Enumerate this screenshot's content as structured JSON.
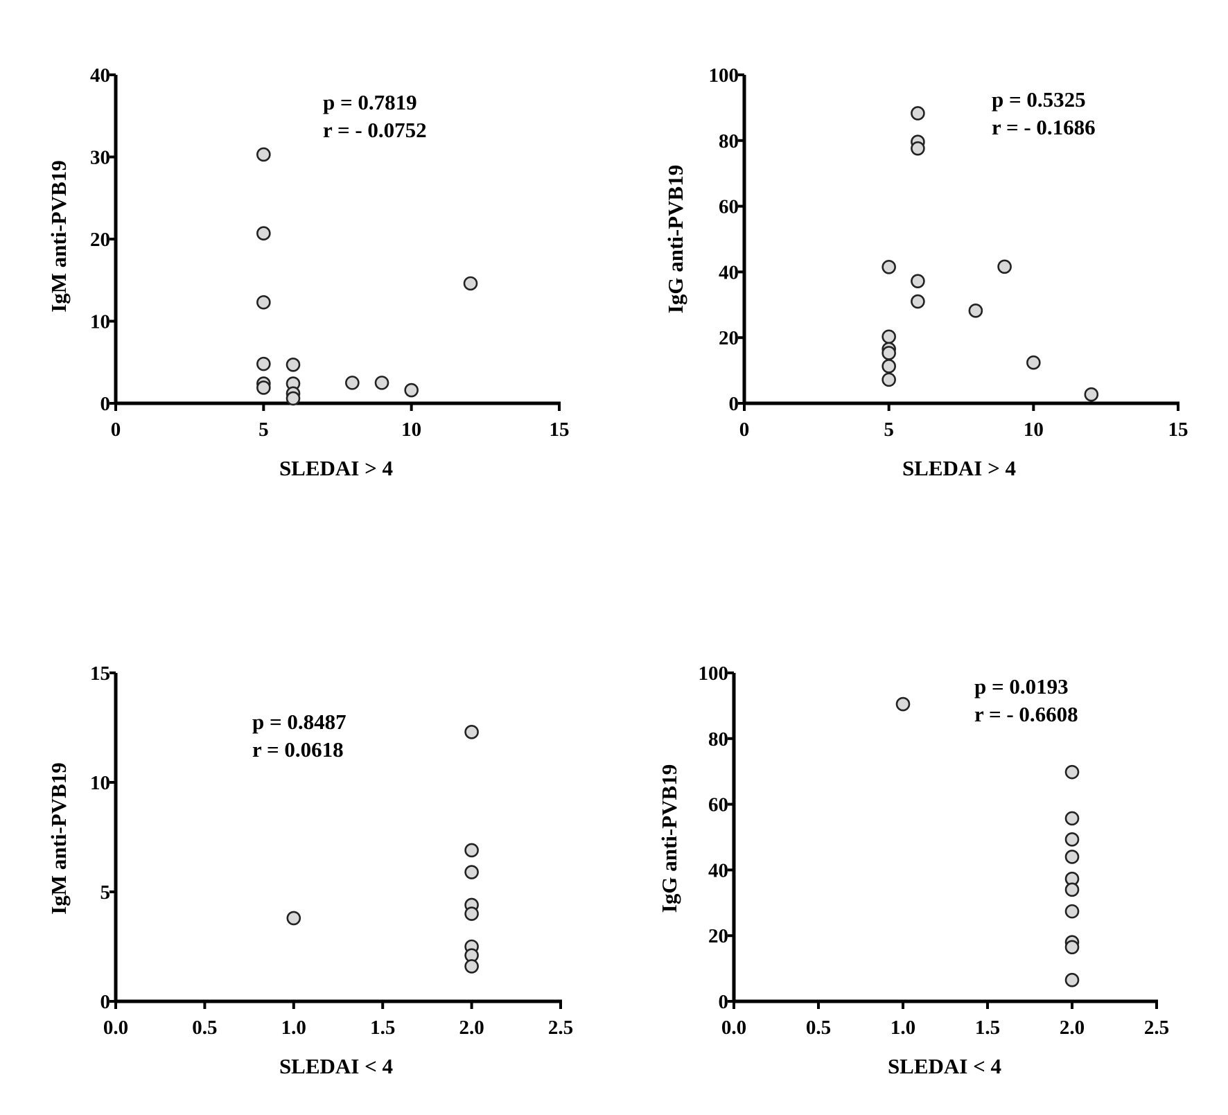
{
  "chart_data": [
    {
      "type": "scatter",
      "xlabel": "SLEDAI  > 4",
      "ylabel": "IgM anti-PVB19",
      "xlim": [
        0,
        15
      ],
      "ylim": [
        0,
        40
      ],
      "xticks": [
        "0",
        "5",
        "10",
        "15"
      ],
      "xtick_values": [
        0,
        5,
        10,
        15
      ],
      "yticks": [
        "0",
        "10",
        "20",
        "30",
        "40"
      ],
      "ytick_values": [
        0,
        10,
        20,
        30,
        40
      ],
      "annotation": [
        "p = 0.7819",
        "r = - 0.0752"
      ],
      "grid": false,
      "marker_color": "#d9d9d9",
      "points": [
        [
          5,
          30.3
        ],
        [
          5,
          20.7
        ],
        [
          5,
          12.3
        ],
        [
          5,
          4.8
        ],
        [
          5,
          2.4
        ],
        [
          5,
          1.9
        ],
        [
          6,
          4.7
        ],
        [
          6,
          2.4
        ],
        [
          6,
          1.2
        ],
        [
          6,
          0.6
        ],
        [
          8,
          2.5
        ],
        [
          9,
          2.5
        ],
        [
          10,
          1.6
        ],
        [
          12,
          14.6
        ]
      ]
    },
    {
      "type": "scatter",
      "xlabel": "SLEDAI  > 4",
      "ylabel": "IgG  anti-PVB19",
      "xlim": [
        0,
        15
      ],
      "ylim": [
        0,
        100
      ],
      "xticks": [
        "0",
        "5",
        "10",
        "15"
      ],
      "xtick_values": [
        0,
        5,
        10,
        15
      ],
      "yticks": [
        "0",
        "20",
        "40",
        "60",
        "80",
        "100"
      ],
      "ytick_values": [
        0,
        20,
        40,
        60,
        80,
        100
      ],
      "annotation": [
        "p = 0.5325",
        "r = - 0.1686"
      ],
      "grid": false,
      "marker_color": "#d9d9d9",
      "points": [
        [
          5,
          41.5
        ],
        [
          5,
          20.3
        ],
        [
          5,
          16.5
        ],
        [
          5,
          15.3
        ],
        [
          5,
          11.3
        ],
        [
          5,
          7.2
        ],
        [
          6,
          88.3
        ],
        [
          6,
          79.6
        ],
        [
          6,
          77.6
        ],
        [
          6,
          37.2
        ],
        [
          6,
          31.0
        ],
        [
          8,
          28.2
        ],
        [
          9,
          41.6
        ],
        [
          10,
          12.4
        ],
        [
          12,
          2.7
        ]
      ]
    },
    {
      "type": "scatter",
      "xlabel": "SLEDAI < 4",
      "ylabel": "IgM anti-PVB19",
      "xlim": [
        0,
        2.5
      ],
      "ylim": [
        0,
        15
      ],
      "xticks": [
        "0.0",
        "0.5",
        "1.0",
        "1.5",
        "2.0",
        "2.5"
      ],
      "xtick_values": [
        0,
        0.5,
        1,
        1.5,
        2,
        2.5
      ],
      "yticks": [
        "0",
        "5",
        "10",
        "15"
      ],
      "ytick_values": [
        0,
        5,
        10,
        15
      ],
      "annotation": [
        "p = 0.8487",
        "r = 0.0618"
      ],
      "grid": false,
      "marker_color": "#d9d9d9",
      "points": [
        [
          1,
          3.8
        ],
        [
          2,
          12.3
        ],
        [
          2,
          6.9
        ],
        [
          2,
          5.9
        ],
        [
          2,
          4.4
        ],
        [
          2,
          4.0
        ],
        [
          2,
          2.5
        ],
        [
          2,
          2.1
        ],
        [
          2,
          1.6
        ]
      ]
    },
    {
      "type": "scatter",
      "xlabel": "SLEDAI < 4",
      "ylabel": "IgG anti-PVB19",
      "xlim": [
        0,
        2.5
      ],
      "ylim": [
        0,
        100
      ],
      "xticks": [
        "0.0",
        "0.5",
        "1.0",
        "1.5",
        "2.0",
        "2.5"
      ],
      "xtick_values": [
        0,
        0.5,
        1,
        1.5,
        2,
        2.5
      ],
      "yticks": [
        "0",
        "20",
        "40",
        "60",
        "80",
        "100"
      ],
      "ytick_values": [
        0,
        20,
        40,
        60,
        80,
        100
      ],
      "annotation": [
        "p = 0.0193",
        "r = - 0.6608"
      ],
      "grid": false,
      "marker_color": "#d9d9d9",
      "points": [
        [
          1,
          90.5
        ],
        [
          2,
          69.8
        ],
        [
          2,
          55.7
        ],
        [
          2,
          49.3
        ],
        [
          2,
          44.0
        ],
        [
          2,
          37.3
        ],
        [
          2,
          34.0
        ],
        [
          2,
          27.4
        ],
        [
          2,
          18.0
        ],
        [
          2,
          16.5
        ],
        [
          2,
          6.5
        ]
      ]
    }
  ]
}
